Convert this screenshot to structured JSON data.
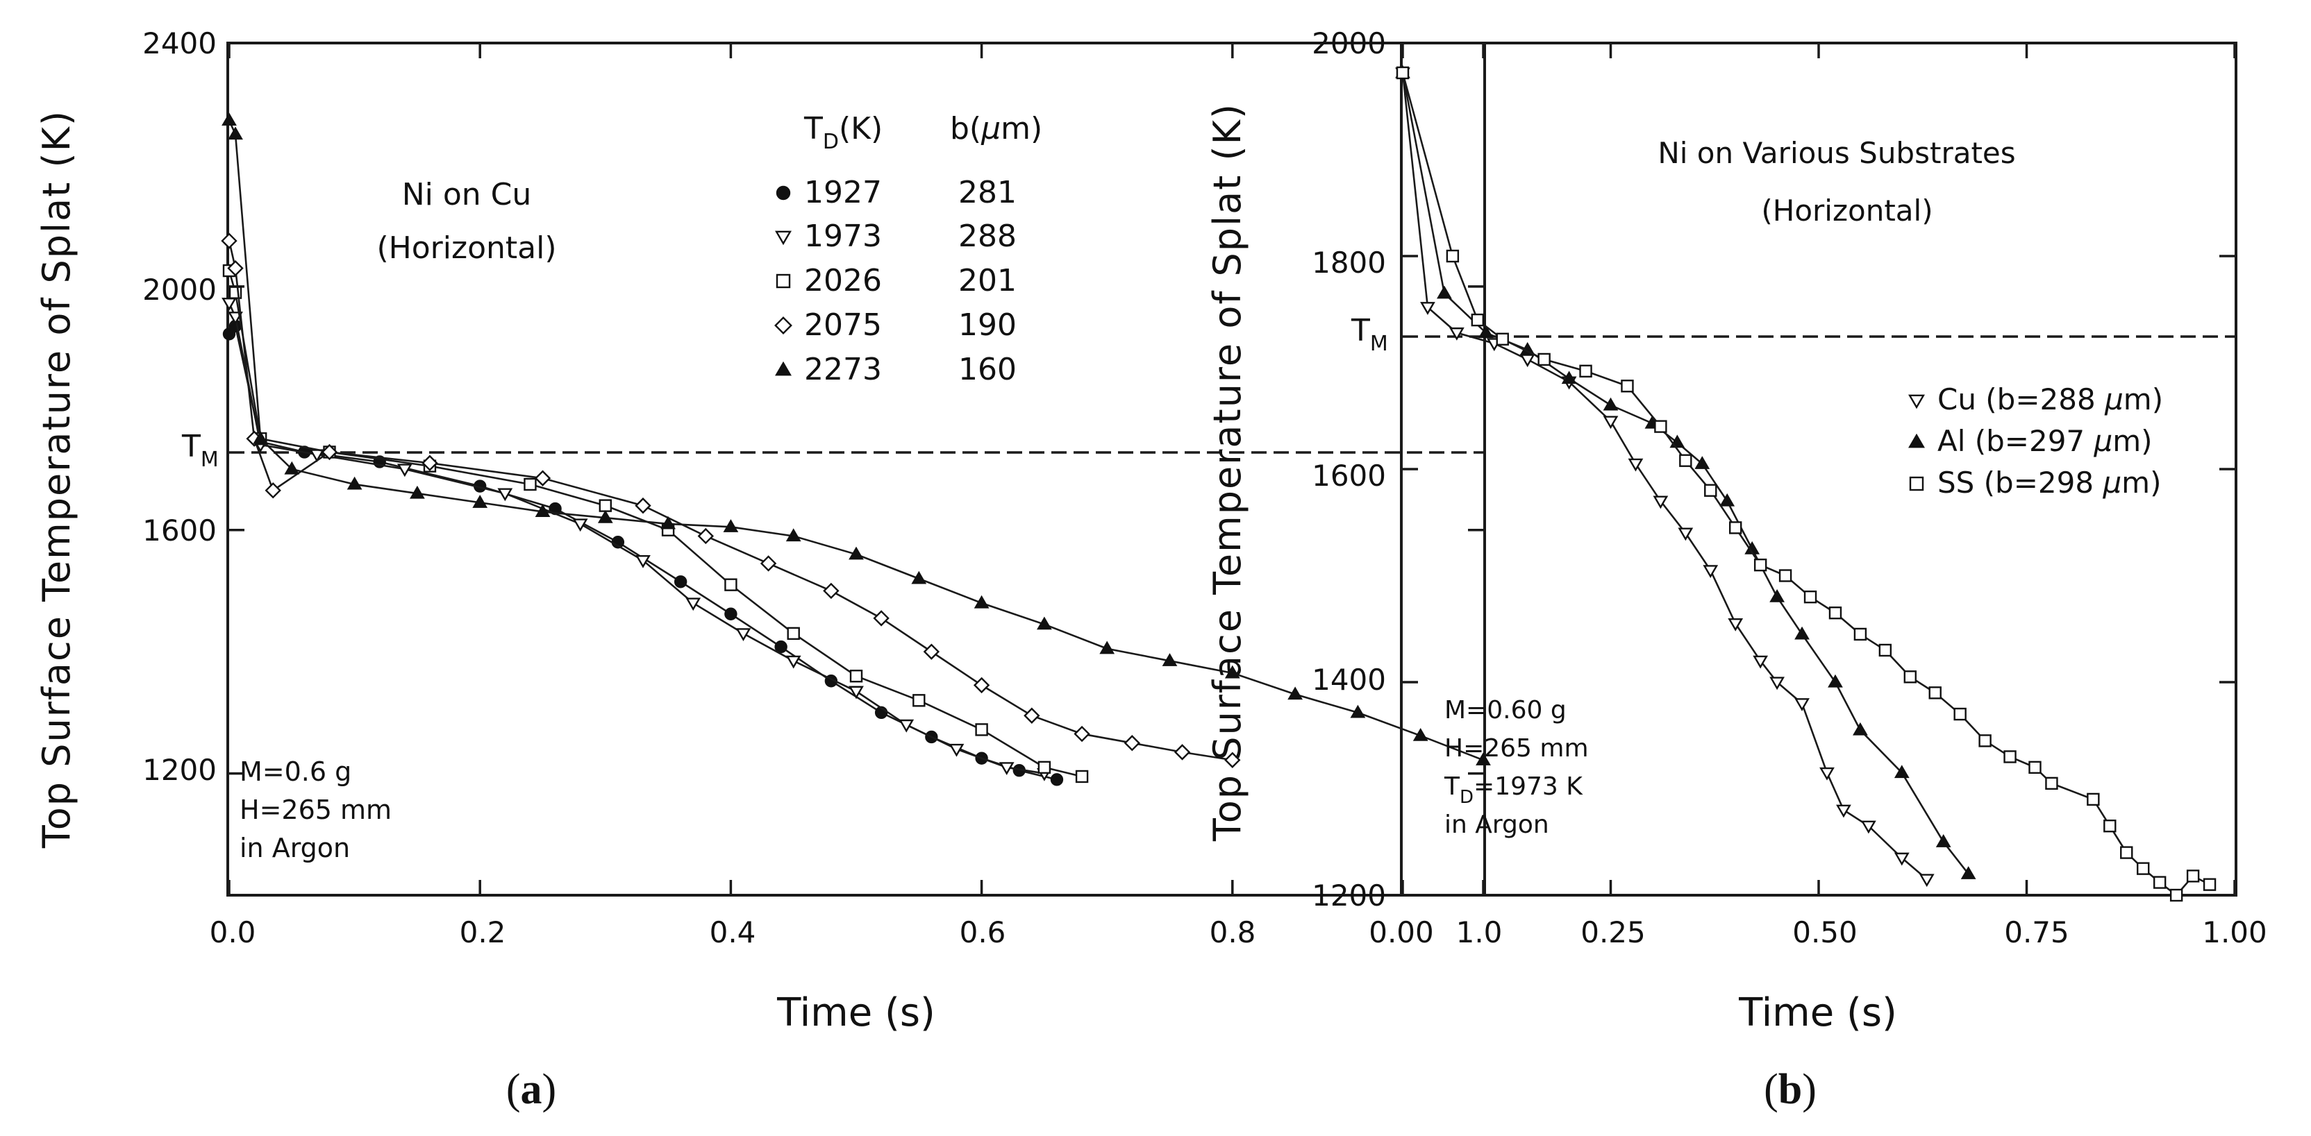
{
  "chart_data": [
    {
      "type": "line",
      "panel": "(a)",
      "title": "Ni on Cu",
      "subtitle": "(Horizontal)",
      "xlabel": "Time (s)",
      "ylabel": "Top Surface Temperature of Splat (K)",
      "xlim": [
        0,
        1.0
      ],
      "ylim": [
        1000,
        2400
      ],
      "xticks": [
        "0.0",
        "0.2",
        "0.4",
        "0.6",
        "0.8",
        "1.0"
      ],
      "xtick_values": [
        0,
        0.2,
        0.4,
        0.6,
        0.8,
        1.0
      ],
      "yticks": [
        "1200",
        "1600",
        "2000",
        "2400"
      ],
      "ytick_values": [
        1200,
        1600,
        2000,
        2400
      ],
      "melting_label": "T",
      "melting_sub": "M",
      "melting_temperature": 1728,
      "legend": {
        "header_td_main": "T",
        "header_td_sub": "D",
        "header_td_unit": "(K)",
        "header_b": "b(",
        "header_b_mu": "μ",
        "header_b_unit": "m)"
      },
      "annotation": [
        "M=0.6 g",
        "H=265 mm",
        "in Argon"
      ],
      "series": [
        {
          "name": "1927 K",
          "td": "1927",
          "b": "281",
          "marker": "circle-filled",
          "x": [
            0,
            0.005,
            0.025,
            0.06,
            0.12,
            0.2,
            0.26,
            0.31,
            0.36,
            0.4,
            0.44,
            0.48,
            0.52,
            0.56,
            0.6,
            0.63,
            0.66
          ],
          "y": [
            1922,
            1935,
            1745,
            1728,
            1712,
            1672,
            1635,
            1580,
            1515,
            1462,
            1408,
            1352,
            1300,
            1260,
            1225,
            1205,
            1190
          ]
        },
        {
          "name": "1973 K",
          "td": "1973",
          "b": "288",
          "marker": "triangle-down-open",
          "x": [
            0,
            0.005,
            0.025,
            0.07,
            0.14,
            0.22,
            0.28,
            0.33,
            0.37,
            0.41,
            0.45,
            0.5,
            0.54,
            0.58,
            0.62,
            0.65
          ],
          "y": [
            1973,
            1950,
            1740,
            1724,
            1700,
            1660,
            1610,
            1550,
            1480,
            1430,
            1385,
            1335,
            1280,
            1240,
            1210,
            1200
          ]
        },
        {
          "name": "2026 K",
          "td": "2026",
          "b": "201",
          "marker": "square-open",
          "x": [
            0,
            0.005,
            0.025,
            0.08,
            0.16,
            0.24,
            0.3,
            0.35,
            0.4,
            0.45,
            0.5,
            0.55,
            0.6,
            0.65,
            0.68
          ],
          "y": [
            2026,
            1990,
            1750,
            1728,
            1705,
            1675,
            1640,
            1600,
            1510,
            1430,
            1360,
            1320,
            1272,
            1210,
            1195
          ]
        },
        {
          "name": "2075 K",
          "td": "2075",
          "b": "190",
          "marker": "diamond-open",
          "x": [
            0,
            0.005,
            0.02,
            0.035,
            0.08,
            0.16,
            0.25,
            0.33,
            0.38,
            0.43,
            0.48,
            0.52,
            0.56,
            0.6,
            0.64,
            0.68,
            0.72,
            0.76,
            0.8
          ],
          "y": [
            2075,
            2030,
            1750,
            1665,
            1728,
            1710,
            1685,
            1640,
            1590,
            1545,
            1500,
            1455,
            1400,
            1345,
            1295,
            1265,
            1250,
            1235,
            1222
          ]
        },
        {
          "name": "2273 K",
          "td": "2273",
          "b": "160",
          "marker": "triangle-up-filled",
          "x": [
            0,
            0.005,
            0.025,
            0.05,
            0.1,
            0.15,
            0.2,
            0.25,
            0.3,
            0.35,
            0.4,
            0.45,
            0.5,
            0.55,
            0.6,
            0.65,
            0.7,
            0.75,
            0.8,
            0.85,
            0.9,
            0.95,
            1.0
          ],
          "y": [
            2273,
            2250,
            1750,
            1700,
            1675,
            1660,
            1645,
            1630,
            1620,
            1610,
            1605,
            1590,
            1560,
            1520,
            1480,
            1445,
            1405,
            1385,
            1365,
            1330,
            1300,
            1262,
            1222
          ]
        }
      ]
    },
    {
      "type": "line",
      "panel": "(b)",
      "title": "Ni on Various Substrates",
      "subtitle": "(Horizontal)",
      "xlabel": "Time (s)",
      "ylabel": "Top Surface Temperature of Splat (K)",
      "xlim": [
        0,
        1.0
      ],
      "ylim": [
        1200,
        2000
      ],
      "xticks": [
        "0.00",
        "0.25",
        "0.50",
        "0.75",
        "1.00"
      ],
      "xtick_values": [
        0,
        0.25,
        0.5,
        0.75,
        1.0
      ],
      "yticks": [
        "1200",
        "1400",
        "1600",
        "1800",
        "2000"
      ],
      "ytick_values": [
        1200,
        1400,
        1600,
        1800,
        2000
      ],
      "melting_label": "T",
      "melting_sub": "M",
      "melting_temperature": 1728,
      "annotation_lines": [
        "M=0.60 g",
        "H=265 mm"
      ],
      "annotation_td_main": "T",
      "annotation_td_sub": "D",
      "annotation_td_value": "=1973 K",
      "annotation_last": "in Argon",
      "series": [
        {
          "name": "Cu",
          "label_start": "Cu (b=288 ",
          "label_mu": "μ",
          "label_end": "m)",
          "marker": "triangle-down-open",
          "x": [
            0,
            0.03,
            0.065,
            0.11,
            0.15,
            0.2,
            0.25,
            0.28,
            0.31,
            0.34,
            0.37,
            0.4,
            0.43,
            0.45,
            0.48,
            0.51,
            0.53,
            0.56,
            0.6,
            0.63
          ],
          "y": [
            1972,
            1752,
            1728,
            1718,
            1703,
            1682,
            1645,
            1605,
            1570,
            1540,
            1505,
            1455,
            1420,
            1400,
            1380,
            1315,
            1280,
            1265,
            1235,
            1215
          ]
        },
        {
          "name": "Al",
          "label_start": "Al (b=297 ",
          "label_mu": "μ",
          "label_end": "m)",
          "marker": "triangle-up-filled",
          "x": [
            0,
            0.05,
            0.1,
            0.15,
            0.2,
            0.25,
            0.3,
            0.33,
            0.36,
            0.39,
            0.42,
            0.45,
            0.48,
            0.52,
            0.55,
            0.6,
            0.65,
            0.68
          ],
          "y": [
            1972,
            1765,
            1728,
            1712,
            1685,
            1660,
            1643,
            1625,
            1605,
            1570,
            1525,
            1480,
            1445,
            1400,
            1355,
            1315,
            1250,
            1220
          ]
        },
        {
          "name": "SS",
          "label_start": "SS (b=298 ",
          "label_mu": "μ",
          "label_end": "m)",
          "marker": "square-open",
          "x": [
            0,
            0.06,
            0.09,
            0.12,
            0.17,
            0.22,
            0.27,
            0.31,
            0.34,
            0.37,
            0.4,
            0.43,
            0.46,
            0.49,
            0.52,
            0.55,
            0.58,
            0.61,
            0.64,
            0.67,
            0.7,
            0.73,
            0.76,
            0.78,
            0.83,
            0.85,
            0.87,
            0.89,
            0.91,
            0.93,
            0.95,
            0.97
          ],
          "y": [
            1972,
            1800,
            1740,
            1722,
            1703,
            1692,
            1678,
            1640,
            1608,
            1580,
            1545,
            1510,
            1500,
            1480,
            1465,
            1445,
            1430,
            1405,
            1390,
            1370,
            1345,
            1330,
            1320,
            1305,
            1290,
            1265,
            1240,
            1225,
            1212,
            1200,
            1218,
            1210
          ]
        }
      ]
    }
  ],
  "captions": {
    "a_open": "(",
    "a_letter": "a",
    "a_close": ")",
    "b_open": "(",
    "b_letter": "b",
    "b_close": ")"
  }
}
